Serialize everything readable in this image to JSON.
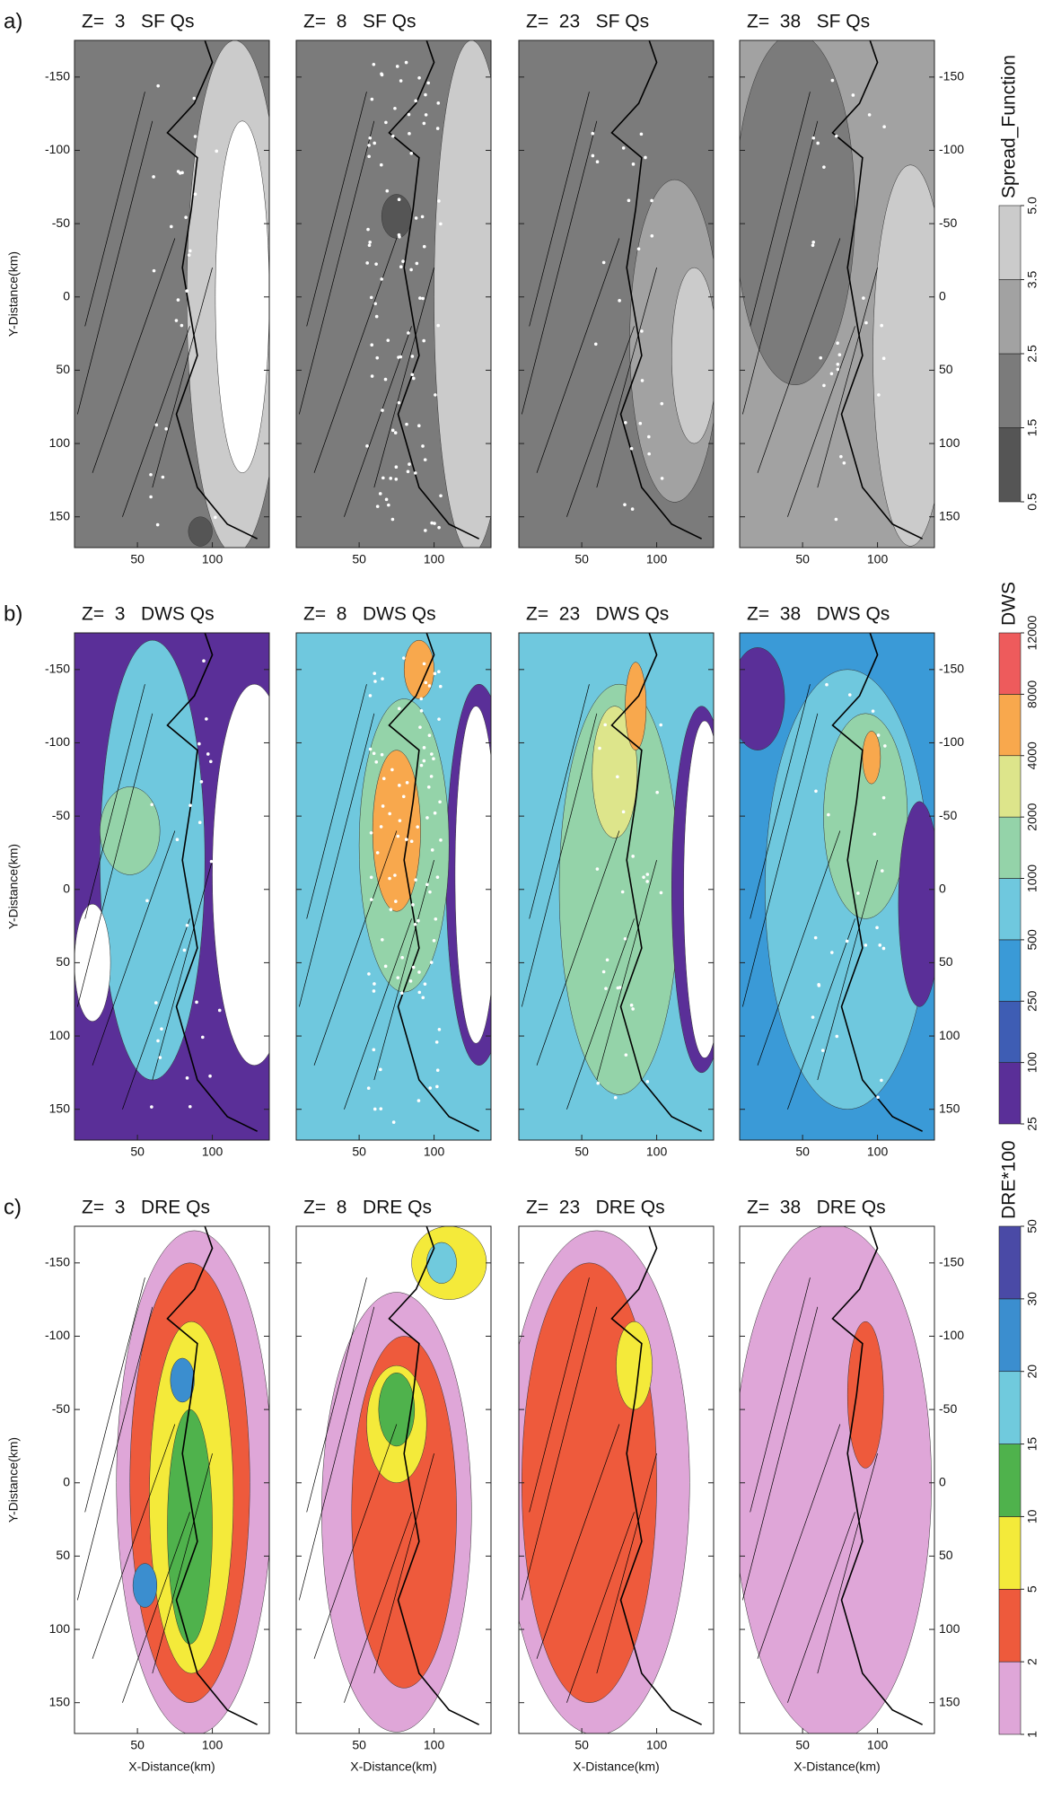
{
  "chart_data": [
    {
      "type": "contour",
      "label": "a)",
      "panel_titles": [
        "Z=  3   SF Qs",
        "Z=  8   SF Qs",
        "Z=  23   SF Qs",
        "Z=  38   SF Qs"
      ],
      "ylabel": "Y-Distance(km)",
      "xlim": [
        8,
        138
      ],
      "xticks": [
        50,
        100
      ],
      "ylim": [
        -175,
        171
      ],
      "yticks": [
        -150,
        -100,
        -50,
        0,
        50,
        100,
        150
      ],
      "colorbar": {
        "label": "Spread_Function",
        "levels": [
          0.5,
          1.5,
          2.5,
          3.5,
          {
            "value": 5,
            "label": "5.0"
          }
        ],
        "colors": [
          "#555555",
          "#7b7b7b",
          "#a2a2a2",
          "#cbcbcb"
        ]
      }
    },
    {
      "type": "contour",
      "label": "b)",
      "panel_titles": [
        "Z=  3   DWS Qs",
        "Z=  8   DWS Qs",
        "Z=  23   DWS Qs",
        "Z=  38   DWS Qs"
      ],
      "ylabel": "Y-Distance(km)",
      "xlim": [
        8,
        138
      ],
      "xticks": [
        50,
        100
      ],
      "ylim": [
        -175,
        171
      ],
      "yticks": [
        -150,
        -100,
        -50,
        0,
        50,
        100,
        150
      ],
      "colorbar": {
        "label": "DWS",
        "levels": [
          25,
          100,
          250,
          500,
          1000,
          2000,
          4000,
          8000,
          12000
        ],
        "colors": [
          "#5a2f98",
          "#3e5db4",
          "#3a9ad7",
          "#6fc8de",
          "#94d3a9",
          "#dde58b",
          "#f8a84d",
          "#ee5b5c"
        ]
      }
    },
    {
      "type": "contour",
      "label": "c)",
      "panel_titles": [
        "Z=  3   DRE Qs",
        "Z=  8   DRE Qs",
        "Z=  23   DRE Qs",
        "Z=  38   DRE Qs"
      ],
      "xlabel": "X-Distance(km)",
      "ylabel": "Y-Distance(km)",
      "xlim": [
        8,
        138
      ],
      "xticks": [
        50,
        100
      ],
      "ylim": [
        -175,
        171
      ],
      "yticks": [
        -150,
        -100,
        -50,
        0,
        50,
        100,
        150
      ],
      "colorbar": {
        "label": "DRE*100",
        "levels": [
          1,
          2,
          5,
          10,
          15,
          20,
          30,
          50
        ],
        "colors": [
          "#dfa6d8",
          "#ee5a3c",
          "#f4ea3a",
          "#4fb24c",
          "#70cadd",
          "#3b8ecf",
          "#4a4aa6"
        ]
      }
    }
  ]
}
